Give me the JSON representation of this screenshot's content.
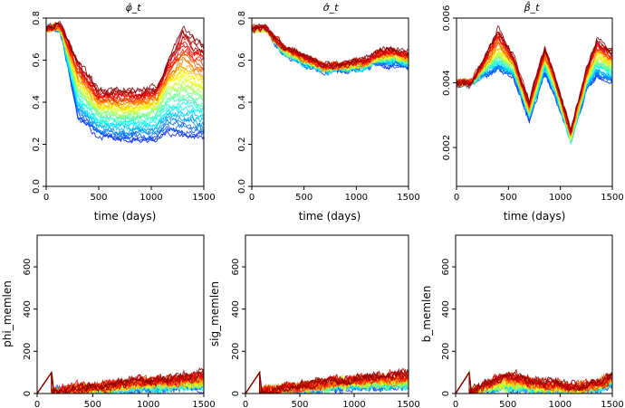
{
  "chart_data": [
    {
      "type": "line",
      "title": "φ̂_t",
      "xlabel": "time (days)",
      "ylabel": "",
      "xlim": [
        0,
        1500
      ],
      "ylim": [
        0,
        0.8
      ],
      "xticks": [
        0,
        500,
        1000,
        1500
      ],
      "yticks": [
        0.0,
        0.2,
        0.4,
        0.6,
        0.8
      ],
      "ytick_labels": [
        "0.0",
        "0.2",
        "0.4",
        "0.6",
        "0.8"
      ],
      "n_series": 40,
      "initial_value": 0.75,
      "ensemble_mean": {
        "x": [
          0,
          130,
          300,
          500,
          700,
          900,
          1050,
          1150,
          1300,
          1500
        ],
        "y": [
          0.75,
          0.75,
          0.48,
          0.37,
          0.36,
          0.37,
          0.39,
          0.47,
          0.5,
          0.46
        ]
      },
      "ensemble_low": {
        "x": [
          0,
          130,
          300,
          500,
          700,
          900,
          1050,
          1150,
          1300,
          1500
        ],
        "y": [
          0.75,
          0.75,
          0.33,
          0.24,
          0.22,
          0.22,
          0.22,
          0.25,
          0.24,
          0.23
        ]
      },
      "ensemble_high": {
        "x": [
          0,
          130,
          300,
          500,
          700,
          900,
          1050,
          1150,
          1300,
          1500
        ],
        "y": [
          0.75,
          0.77,
          0.6,
          0.45,
          0.46,
          0.45,
          0.47,
          0.58,
          0.75,
          0.67
        ]
      }
    },
    {
      "type": "line",
      "title": "σ̂_t",
      "xlabel": "time (days)",
      "ylabel": "",
      "xlim": [
        0,
        1500
      ],
      "ylim": [
        0,
        0.8
      ],
      "xticks": [
        0,
        500,
        1000,
        1500
      ],
      "yticks": [
        0.0,
        0.2,
        0.4,
        0.6,
        0.8
      ],
      "ytick_labels": [
        "0.0",
        "0.2",
        "0.4",
        "0.6",
        "0.8"
      ],
      "n_series": 40,
      "initial_value": 0.75,
      "ensemble_mean": {
        "x": [
          0,
          130,
          300,
          500,
          700,
          900,
          1100,
          1200,
          1350,
          1500
        ],
        "y": [
          0.75,
          0.75,
          0.65,
          0.6,
          0.56,
          0.57,
          0.58,
          0.61,
          0.62,
          0.6
        ]
      },
      "ensemble_low": {
        "x": [
          0,
          130,
          300,
          500,
          700,
          900,
          1100,
          1200,
          1350,
          1500
        ],
        "y": [
          0.75,
          0.75,
          0.63,
          0.58,
          0.55,
          0.55,
          0.56,
          0.58,
          0.58,
          0.57
        ]
      },
      "ensemble_high": {
        "x": [
          0,
          130,
          300,
          500,
          700,
          900,
          1100,
          1200,
          1350,
          1500
        ],
        "y": [
          0.75,
          0.75,
          0.67,
          0.62,
          0.58,
          0.59,
          0.6,
          0.64,
          0.65,
          0.63
        ]
      }
    },
    {
      "type": "line",
      "title": "β̂_t",
      "xlabel": "time (days)",
      "ylabel": "",
      "xlim": [
        0,
        1500
      ],
      "ylim": [
        0.0008,
        0.006
      ],
      "xticks": [
        0,
        500,
        1000,
        1500
      ],
      "yticks": [
        0.002,
        0.004,
        0.006
      ],
      "ytick_labels": [
        "0.002",
        "0.004",
        "0.006"
      ],
      "n_series": 40,
      "initial_value": 0.004,
      "ensemble_mean": {
        "x": [
          0,
          130,
          250,
          400,
          550,
          700,
          850,
          950,
          1100,
          1250,
          1350,
          1500
        ],
        "y": [
          0.004,
          0.004,
          0.0044,
          0.0049,
          0.0045,
          0.0031,
          0.0047,
          0.0039,
          0.0023,
          0.0041,
          0.0048,
          0.0045
        ]
      },
      "ensemble_low": {
        "x": [
          0,
          130,
          250,
          400,
          550,
          700,
          850,
          950,
          1100,
          1250,
          1350,
          1500
        ],
        "y": [
          0.004,
          0.004,
          0.0042,
          0.0044,
          0.0042,
          0.0029,
          0.0043,
          0.0036,
          0.0022,
          0.0038,
          0.0042,
          0.004
        ]
      },
      "ensemble_high": {
        "x": [
          0,
          130,
          250,
          400,
          550,
          700,
          850,
          950,
          1100,
          1250,
          1350,
          1500
        ],
        "y": [
          0.004,
          0.004,
          0.0046,
          0.0057,
          0.0048,
          0.0034,
          0.0051,
          0.0042,
          0.0025,
          0.0044,
          0.0053,
          0.005
        ]
      }
    },
    {
      "type": "line",
      "title": "",
      "xlabel": "",
      "ylabel": "phi_memlen",
      "xlim": [
        0,
        1500
      ],
      "ylim": [
        0,
        750
      ],
      "xticks": [
        0,
        500,
        1000,
        1500
      ],
      "yticks": [
        0,
        200,
        400,
        600
      ],
      "ytick_labels": [
        "0",
        "200",
        "400",
        "600"
      ],
      "n_series": 40,
      "ramp": {
        "x": [
          0,
          130
        ],
        "y": [
          0,
          100
        ]
      },
      "ensemble_mean": {
        "x": [
          130,
          300,
          600,
          900,
          1200,
          1500
        ],
        "y": [
          5,
          15,
          25,
          35,
          45,
          50
        ]
      },
      "ensemble_low": {
        "x": [
          130,
          300,
          600,
          900,
          1200,
          1500
        ],
        "y": [
          5,
          10,
          15,
          20,
          25,
          30
        ]
      },
      "ensemble_high": {
        "x": [
          130,
          300,
          600,
          900,
          1200,
          1500
        ],
        "y": [
          5,
          22,
          40,
          60,
          70,
          95
        ]
      }
    },
    {
      "type": "line",
      "title": "",
      "xlabel": "",
      "ylabel": "sig_memlen",
      "xlim": [
        0,
        1500
      ],
      "ylim": [
        0,
        750
      ],
      "xticks": [
        0,
        500,
        1000,
        1500
      ],
      "yticks": [
        0,
        200,
        400,
        600
      ],
      "ytick_labels": [
        "0",
        "200",
        "400",
        "600"
      ],
      "n_series": 40,
      "ramp": {
        "x": [
          0,
          130
        ],
        "y": [
          0,
          100
        ]
      },
      "ensemble_mean": {
        "x": [
          130,
          300,
          600,
          900,
          1200,
          1500
        ],
        "y": [
          5,
          15,
          30,
          45,
          55,
          55
        ]
      },
      "ensemble_low": {
        "x": [
          130,
          300,
          600,
          900,
          1200,
          1500
        ],
        "y": [
          5,
          10,
          20,
          30,
          35,
          35
        ]
      },
      "ensemble_high": {
        "x": [
          130,
          300,
          600,
          900,
          1200,
          1500
        ],
        "y": [
          5,
          25,
          45,
          70,
          85,
          100
        ]
      }
    },
    {
      "type": "line",
      "title": "",
      "xlabel": "",
      "ylabel": "b_memlen",
      "xlim": [
        0,
        1500
      ],
      "ylim": [
        0,
        750
      ],
      "xticks": [
        0,
        500,
        1000,
        1500
      ],
      "yticks": [
        0,
        200,
        400,
        600
      ],
      "ytick_labels": [
        "0",
        "200",
        "400",
        "600"
      ],
      "n_series": 40,
      "ramp": {
        "x": [
          0,
          130
        ],
        "y": [
          0,
          100
        ]
      },
      "ensemble_mean": {
        "x": [
          130,
          300,
          450,
          600,
          800,
          1000,
          1200,
          1400,
          1500
        ],
        "y": [
          5,
          25,
          45,
          40,
          30,
          25,
          20,
          40,
          70
        ]
      },
      "ensemble_low": {
        "x": [
          130,
          300,
          450,
          600,
          800,
          1000,
          1200,
          1400,
          1500
        ],
        "y": [
          5,
          15,
          25,
          20,
          15,
          15,
          10,
          20,
          45
        ]
      },
      "ensemble_high": {
        "x": [
          130,
          300,
          450,
          600,
          800,
          1000,
          1200,
          1400,
          1500
        ],
        "y": [
          5,
          45,
          90,
          85,
          55,
          40,
          35,
          60,
          90
        ]
      }
    }
  ],
  "colors": {
    "axis": "#000000",
    "ramp": "#8b0000",
    "colormap": "jet"
  }
}
